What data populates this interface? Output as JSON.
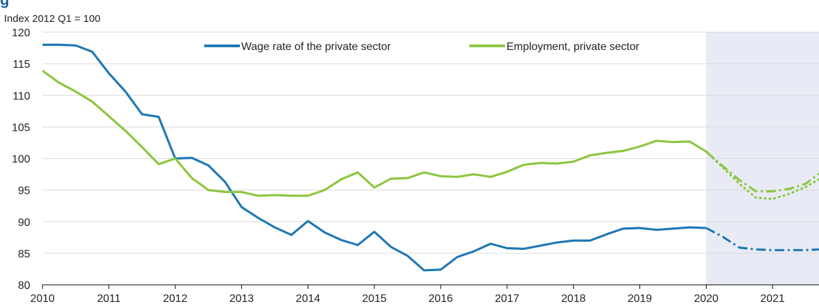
{
  "chart_data": {
    "type": "line",
    "title_fragment": "g",
    "index_note": "Index 2012 Q1 = 100",
    "ylim": [
      80,
      120
    ],
    "y_ticks": [
      80,
      85,
      90,
      95,
      100,
      105,
      110,
      115,
      120
    ],
    "xlim": [
      2010,
      2021.7
    ],
    "x_ticks": [
      "2010",
      "2011",
      "2012",
      "2013",
      "2014",
      "2015",
      "2016",
      "2017",
      "2018",
      "2019",
      "2020",
      "2021"
    ],
    "grid": "horizontal",
    "legend_position": "top",
    "projection_start": 2020.0,
    "colors": {
      "wage": "#1f78b4",
      "employment": "#8cc63f",
      "projection_band": "#e8ebf5",
      "grid": "#d9d9d9",
      "axis": "#000000",
      "title": "#1f5fa8"
    },
    "series": [
      {
        "name": "Wage rate of the private sector",
        "key": "wage",
        "style": "solid",
        "x": [
          2010.0,
          2010.25,
          2010.5,
          2010.75,
          2011.0,
          2011.25,
          2011.5,
          2011.75,
          2012.0,
          2012.25,
          2012.5,
          2012.75,
          2013.0,
          2013.25,
          2013.5,
          2013.75,
          2014.0,
          2014.25,
          2014.5,
          2014.75,
          2015.0,
          2015.25,
          2015.5,
          2015.75,
          2016.0,
          2016.25,
          2016.5,
          2016.75,
          2017.0,
          2017.25,
          2017.5,
          2017.75,
          2018.0,
          2018.25,
          2018.5,
          2018.75,
          2019.0,
          2019.25,
          2019.5,
          2019.75,
          2020.0
        ],
        "values": [
          118.0,
          118.0,
          117.9,
          116.9,
          113.5,
          110.6,
          107.0,
          106.6,
          100.0,
          100.1,
          98.9,
          96.3,
          92.3,
          90.6,
          89.1,
          87.9,
          90.1,
          88.3,
          87.1,
          86.3,
          88.4,
          86.0,
          84.6,
          82.3,
          82.4,
          84.4,
          85.3,
          86.5,
          85.8,
          85.7,
          86.2,
          86.7,
          87.0,
          87.0,
          88.0,
          88.9,
          89.0,
          88.7,
          88.9,
          89.1,
          89.0
        ]
      },
      {
        "name": "Employment, private sector",
        "key": "employment",
        "style": "solid",
        "x": [
          2010.0,
          2010.25,
          2010.5,
          2010.75,
          2011.0,
          2011.25,
          2011.5,
          2011.75,
          2012.0,
          2012.25,
          2012.5,
          2012.75,
          2013.0,
          2013.25,
          2013.5,
          2013.75,
          2014.0,
          2014.25,
          2014.5,
          2014.75,
          2015.0,
          2015.25,
          2015.5,
          2015.75,
          2016.0,
          2016.25,
          2016.5,
          2016.75,
          2017.0,
          2017.25,
          2017.5,
          2017.75,
          2018.0,
          2018.25,
          2018.5,
          2018.75,
          2019.0,
          2019.25,
          2019.5,
          2019.75,
          2020.0
        ],
        "values": [
          113.9,
          112.0,
          110.6,
          109.0,
          106.7,
          104.4,
          101.8,
          99.1,
          100.0,
          96.9,
          95.0,
          94.7,
          94.7,
          94.1,
          94.2,
          94.1,
          94.1,
          95.0,
          96.7,
          97.8,
          95.4,
          96.8,
          96.9,
          97.8,
          97.2,
          97.1,
          97.5,
          97.1,
          97.9,
          99.0,
          99.3,
          99.2,
          99.5,
          100.5,
          100.9,
          101.2,
          101.9,
          102.8,
          102.6,
          102.7,
          101.1
        ]
      },
      {
        "name": "",
        "key": "wage",
        "style": "dashdot",
        "x": [
          2020.0,
          2020.25,
          2020.5,
          2020.75,
          2021.0,
          2021.25,
          2021.5,
          2021.7
        ],
        "values": [
          89.0,
          87.6,
          85.9,
          85.6,
          85.5,
          85.5,
          85.5,
          85.6
        ]
      },
      {
        "name": "",
        "key": "employment",
        "style": "dashdot",
        "x": [
          2020.0,
          2020.25,
          2020.5,
          2020.75,
          2021.0,
          2021.25,
          2021.5,
          2021.7
        ],
        "values": [
          101.1,
          98.8,
          96.6,
          94.8,
          94.8,
          95.2,
          96.0,
          97.6
        ]
      },
      {
        "name": "",
        "key": "employment",
        "style": "dotted",
        "x": [
          2020.0,
          2020.25,
          2020.5,
          2020.75,
          2021.0,
          2021.25,
          2021.5,
          2021.7
        ],
        "values": [
          101.1,
          98.6,
          96.0,
          93.8,
          93.6,
          94.4,
          95.5,
          96.7
        ]
      }
    ]
  }
}
